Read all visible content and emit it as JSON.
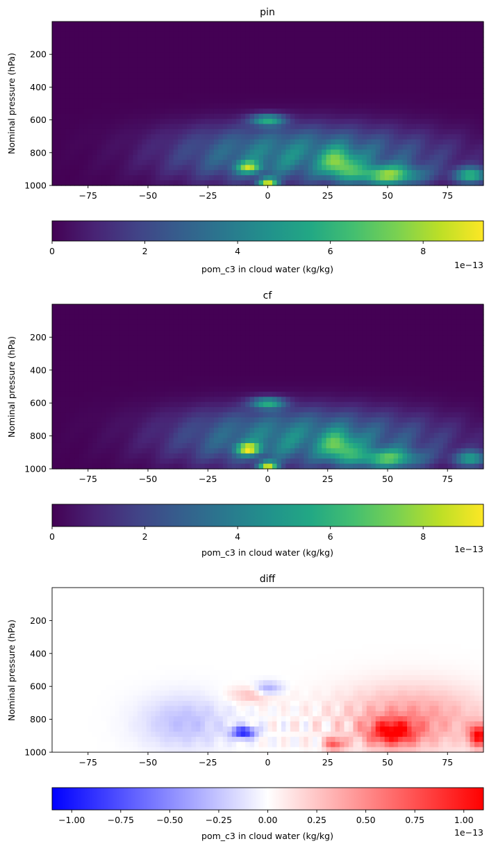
{
  "chart_data": [
    {
      "type": "heatmap",
      "title": "pin",
      "ylabel": "Nominal pressure (hPa)",
      "xlabel": "",
      "xlim": [
        -90,
        90
      ],
      "ylim": [
        1000,
        0
      ],
      "xticks": [
        "−75",
        "−50",
        "−25",
        "0",
        "25",
        "50",
        "75"
      ],
      "xtick_values": [
        -75,
        -50,
        -25,
        0,
        25,
        50,
        75
      ],
      "yticks": [
        "200",
        "400",
        "600",
        "800",
        "1000"
      ],
      "ytick_values": [
        200,
        400,
        600,
        800,
        1000
      ],
      "colormap": "viridis",
      "colorbar": {
        "label": "pom_c3 in cloud water (kg/kg)",
        "range": [
          0,
          9.3
        ],
        "ticks": [
          "0",
          "2",
          "4",
          "6",
          "8"
        ],
        "tick_values": [
          0,
          2,
          4,
          6,
          8
        ],
        "offset": "1e−13"
      },
      "features": [
        {
          "lat": 0,
          "p": 975,
          "value": 9.0
        },
        {
          "lat": 0,
          "p": 600,
          "value": 5.0
        },
        {
          "lat": 50,
          "p": 940,
          "value": 6.0
        },
        {
          "lat": 30,
          "p": 870,
          "value": 4.5
        },
        {
          "lat": -8,
          "p": 890,
          "value": 5.0
        },
        {
          "lat": 85,
          "p": 940,
          "value": 5.5
        }
      ]
    },
    {
      "type": "heatmap",
      "title": "cf",
      "ylabel": "Nominal pressure (hPa)",
      "xlabel": "",
      "xlim": [
        -90,
        90
      ],
      "ylim": [
        1000,
        0
      ],
      "xticks": [
        "−75",
        "−50",
        "−25",
        "0",
        "25",
        "50",
        "75"
      ],
      "xtick_values": [
        -75,
        -50,
        -25,
        0,
        25,
        50,
        75
      ],
      "yticks": [
        "200",
        "400",
        "600",
        "800",
        "1000"
      ],
      "ytick_values": [
        200,
        400,
        600,
        800,
        1000
      ],
      "colormap": "viridis",
      "colorbar": {
        "label": "pom_c3 in cloud water (kg/kg)",
        "range": [
          0,
          9.3
        ],
        "ticks": [
          "0",
          "2",
          "4",
          "6",
          "8"
        ],
        "tick_values": [
          0,
          2,
          4,
          6,
          8
        ],
        "offset": "1e−13"
      },
      "features": [
        {
          "lat": 0,
          "p": 975,
          "value": 9.0
        },
        {
          "lat": 0,
          "p": 600,
          "value": 5.0
        },
        {
          "lat": 50,
          "p": 940,
          "value": 5.0
        },
        {
          "lat": 30,
          "p": 870,
          "value": 4.0
        },
        {
          "lat": -8,
          "p": 880,
          "value": 6.0
        },
        {
          "lat": 85,
          "p": 940,
          "value": 4.5
        }
      ]
    },
    {
      "type": "heatmap",
      "title": "diff",
      "ylabel": "Nominal pressure (hPa)",
      "xlabel": "",
      "xlim": [
        -90,
        90
      ],
      "ylim": [
        1000,
        0
      ],
      "xticks": [
        "−75",
        "−50",
        "−25",
        "0",
        "25",
        "50",
        "75"
      ],
      "xtick_values": [
        -75,
        -50,
        -25,
        0,
        25,
        50,
        75
      ],
      "yticks": [
        "200",
        "400",
        "600",
        "800",
        "1000"
      ],
      "ytick_values": [
        200,
        400,
        600,
        800,
        1000
      ],
      "colormap": "bwr",
      "colorbar": {
        "label": "pom_c3 in cloud water (kg/kg)",
        "range": [
          -1.1,
          1.1
        ],
        "ticks": [
          "−1.00",
          "−0.75",
          "−0.50",
          "−0.25",
          "0.00",
          "0.25",
          "0.50",
          "0.75",
          "1.00"
        ],
        "tick_values": [
          -1.0,
          -0.75,
          -0.5,
          -0.25,
          0.0,
          0.25,
          0.5,
          0.75,
          1.0
        ],
        "offset": "1e−13"
      },
      "features": [
        {
          "lat": -10,
          "p": 880,
          "value": -0.95
        },
        {
          "lat": 0,
          "p": 620,
          "value": -0.5
        },
        {
          "lat": 52,
          "p": 880,
          "value": 0.85
        },
        {
          "lat": 88,
          "p": 900,
          "value": 1.0
        },
        {
          "lat": 28,
          "p": 950,
          "value": 0.7
        },
        {
          "lat": -5,
          "p": 650,
          "value": 0.35
        }
      ]
    }
  ]
}
